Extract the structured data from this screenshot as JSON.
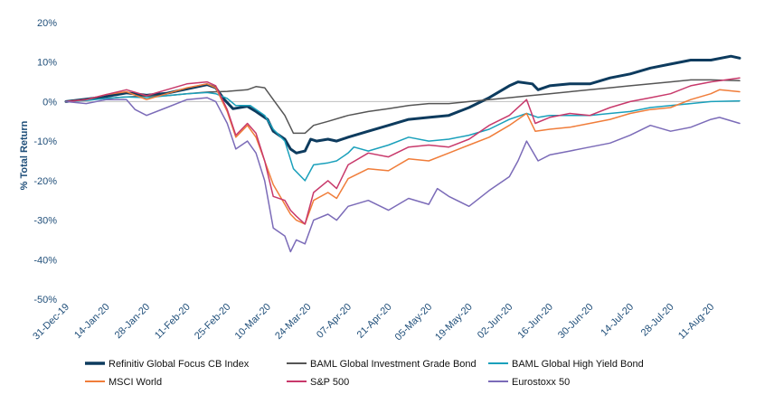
{
  "chart_data": {
    "type": "line",
    "ylabel": "% Total Return",
    "ylim": [
      -50,
      20
    ],
    "y_ticks": [
      20,
      10,
      0,
      -10,
      -20,
      -30,
      -40,
      -50
    ],
    "y_tick_labels": [
      "20%",
      "10%",
      "0%",
      "-10%",
      "-20%",
      "-30%",
      "-40%",
      "-50%"
    ],
    "x_ticks": [
      "2019-12-31",
      "2020-01-14",
      "2020-01-28",
      "2020-02-11",
      "2020-02-25",
      "2020-03-10",
      "2020-03-24",
      "2020-04-07",
      "2020-04-21",
      "2020-05-05",
      "2020-05-19",
      "2020-06-02",
      "2020-06-16",
      "2020-06-30",
      "2020-07-14",
      "2020-07-28",
      "2020-08-11"
    ],
    "x_tick_labels": [
      "31-Dec-19",
      "14-Jan-20",
      "28-Jan-20",
      "11-Feb-20",
      "25-Feb-20",
      "10-Mar-20",
      "24-Mar-20",
      "07-Apr-20",
      "21-Apr-20",
      "05-May-20",
      "19-May-20",
      "02-Jun-20",
      "16-Jun-20",
      "30-Jun-20",
      "14-Jul-20",
      "28-Jul-20",
      "11-Aug-20"
    ],
    "xlim": [
      "2019-12-31",
      "2020-08-21"
    ],
    "grid": false,
    "legend_position": "bottom",
    "series": [
      {
        "name": "Refinitiv Global Focus CB Index",
        "color": "#0d3b5e",
        "width": 3,
        "points": [
          [
            "2019-12-31",
            0
          ],
          [
            "2020-01-07",
            0.6
          ],
          [
            "2020-01-14",
            1.3
          ],
          [
            "2020-01-21",
            2.2
          ],
          [
            "2020-01-28",
            1.6
          ],
          [
            "2020-02-04",
            2.1
          ],
          [
            "2020-02-11",
            3.2
          ],
          [
            "2020-02-18",
            4.3
          ],
          [
            "2020-02-21",
            3.5
          ],
          [
            "2020-02-24",
            0.5
          ],
          [
            "2020-02-27",
            -1.8
          ],
          [
            "2020-03-03",
            -1.2
          ],
          [
            "2020-03-06",
            -2.5
          ],
          [
            "2020-03-10",
            -4.5
          ],
          [
            "2020-03-12",
            -7.5
          ],
          [
            "2020-03-16",
            -9.5
          ],
          [
            "2020-03-18",
            -12.0
          ],
          [
            "2020-03-20",
            -13.0
          ],
          [
            "2020-03-23",
            -12.5
          ],
          [
            "2020-03-25",
            -9.5
          ],
          [
            "2020-03-27",
            -10.0
          ],
          [
            "2020-03-31",
            -9.5
          ],
          [
            "2020-04-03",
            -10.0
          ],
          [
            "2020-04-07",
            -9.0
          ],
          [
            "2020-04-14",
            -7.5
          ],
          [
            "2020-04-21",
            -6.0
          ],
          [
            "2020-04-28",
            -4.5
          ],
          [
            "2020-05-05",
            -4.0
          ],
          [
            "2020-05-12",
            -3.5
          ],
          [
            "2020-05-19",
            -1.5
          ],
          [
            "2020-05-26",
            1.0
          ],
          [
            "2020-06-02",
            4.0
          ],
          [
            "2020-06-05",
            5.0
          ],
          [
            "2020-06-10",
            4.5
          ],
          [
            "2020-06-12",
            3.0
          ],
          [
            "2020-06-16",
            4.0
          ],
          [
            "2020-06-23",
            4.5
          ],
          [
            "2020-06-30",
            4.5
          ],
          [
            "2020-07-07",
            6.0
          ],
          [
            "2020-07-14",
            7.0
          ],
          [
            "2020-07-21",
            8.5
          ],
          [
            "2020-07-28",
            9.5
          ],
          [
            "2020-08-04",
            10.5
          ],
          [
            "2020-08-11",
            10.5
          ],
          [
            "2020-08-18",
            11.5
          ],
          [
            "2020-08-21",
            11.0
          ]
        ]
      },
      {
        "name": "BAML Global Investment Grade Bond",
        "color": "#555555",
        "width": 1.5,
        "points": [
          [
            "2019-12-31",
            0
          ],
          [
            "2020-01-07",
            0.4
          ],
          [
            "2020-01-14",
            0.8
          ],
          [
            "2020-01-21",
            1.2
          ],
          [
            "2020-01-28",
            1.4
          ],
          [
            "2020-02-04",
            1.5
          ],
          [
            "2020-02-11",
            2.0
          ],
          [
            "2020-02-18",
            2.4
          ],
          [
            "2020-02-25",
            2.6
          ],
          [
            "2020-03-03",
            3.0
          ],
          [
            "2020-03-06",
            3.8
          ],
          [
            "2020-03-09",
            3.5
          ],
          [
            "2020-03-12",
            0.5
          ],
          [
            "2020-03-16",
            -3.5
          ],
          [
            "2020-03-19",
            -8.0
          ],
          [
            "2020-03-23",
            -8.0
          ],
          [
            "2020-03-26",
            -6.0
          ],
          [
            "2020-03-31",
            -5.0
          ],
          [
            "2020-04-07",
            -3.5
          ],
          [
            "2020-04-14",
            -2.5
          ],
          [
            "2020-04-21",
            -1.8
          ],
          [
            "2020-04-28",
            -1.0
          ],
          [
            "2020-05-05",
            -0.5
          ],
          [
            "2020-05-12",
            -0.5
          ],
          [
            "2020-05-19",
            0
          ],
          [
            "2020-05-26",
            0.5
          ],
          [
            "2020-06-02",
            1.0
          ],
          [
            "2020-06-09",
            1.5
          ],
          [
            "2020-06-16",
            2.0
          ],
          [
            "2020-06-23",
            2.5
          ],
          [
            "2020-06-30",
            3.0
          ],
          [
            "2020-07-07",
            3.5
          ],
          [
            "2020-07-14",
            4.0
          ],
          [
            "2020-07-21",
            4.5
          ],
          [
            "2020-07-28",
            5.0
          ],
          [
            "2020-08-04",
            5.5
          ],
          [
            "2020-08-11",
            5.5
          ],
          [
            "2020-08-21",
            5.3
          ]
        ]
      },
      {
        "name": "BAML Global High Yield Bond",
        "color": "#1aa0bb",
        "width": 1.5,
        "points": [
          [
            "2019-12-31",
            0
          ],
          [
            "2020-01-07",
            0.3
          ],
          [
            "2020-01-14",
            0.8
          ],
          [
            "2020-01-21",
            1.2
          ],
          [
            "2020-01-28",
            1.0
          ],
          [
            "2020-02-04",
            1.5
          ],
          [
            "2020-02-11",
            2.0
          ],
          [
            "2020-02-18",
            2.3
          ],
          [
            "2020-02-21",
            2.0
          ],
          [
            "2020-02-25",
            0.8
          ],
          [
            "2020-02-28",
            -1.0
          ],
          [
            "2020-03-04",
            -1.0
          ],
          [
            "2020-03-09",
            -3.5
          ],
          [
            "2020-03-12",
            -7.0
          ],
          [
            "2020-03-16",
            -10.0
          ],
          [
            "2020-03-19",
            -17.0
          ],
          [
            "2020-03-23",
            -20.0
          ],
          [
            "2020-03-26",
            -16.0
          ],
          [
            "2020-03-31",
            -15.5
          ],
          [
            "2020-04-03",
            -15.0
          ],
          [
            "2020-04-07",
            -13.0
          ],
          [
            "2020-04-09",
            -11.5
          ],
          [
            "2020-04-14",
            -12.5
          ],
          [
            "2020-04-21",
            -11.0
          ],
          [
            "2020-04-28",
            -9.0
          ],
          [
            "2020-05-05",
            -10.0
          ],
          [
            "2020-05-12",
            -9.5
          ],
          [
            "2020-05-19",
            -8.5
          ],
          [
            "2020-05-26",
            -7.0
          ],
          [
            "2020-06-02",
            -4.5
          ],
          [
            "2020-06-08",
            -3.0
          ],
          [
            "2020-06-12",
            -4.0
          ],
          [
            "2020-06-16",
            -3.5
          ],
          [
            "2020-06-23",
            -3.5
          ],
          [
            "2020-06-30",
            -3.5
          ],
          [
            "2020-07-07",
            -3.0
          ],
          [
            "2020-07-14",
            -2.5
          ],
          [
            "2020-07-21",
            -1.5
          ],
          [
            "2020-07-28",
            -1.0
          ],
          [
            "2020-08-04",
            -0.5
          ],
          [
            "2020-08-11",
            0
          ],
          [
            "2020-08-21",
            0.2
          ]
        ]
      },
      {
        "name": "MSCI World",
        "color": "#f07d3a",
        "width": 1.5,
        "points": [
          [
            "2019-12-31",
            0
          ],
          [
            "2020-01-07",
            0.5
          ],
          [
            "2020-01-14",
            1.8
          ],
          [
            "2020-01-21",
            2.5
          ],
          [
            "2020-01-28",
            0.5
          ],
          [
            "2020-02-04",
            2.0
          ],
          [
            "2020-02-11",
            3.5
          ],
          [
            "2020-02-18",
            4.5
          ],
          [
            "2020-02-21",
            3.5
          ],
          [
            "2020-02-25",
            -2.5
          ],
          [
            "2020-02-28",
            -9.0
          ],
          [
            "2020-03-03",
            -6.0
          ],
          [
            "2020-03-06",
            -9.0
          ],
          [
            "2020-03-09",
            -15.0
          ],
          [
            "2020-03-12",
            -21.0
          ],
          [
            "2020-03-16",
            -26.0
          ],
          [
            "2020-03-18",
            -28.5
          ],
          [
            "2020-03-20",
            -30.0
          ],
          [
            "2020-03-23",
            -31.0
          ],
          [
            "2020-03-26",
            -25.0
          ],
          [
            "2020-03-31",
            -23.0
          ],
          [
            "2020-04-03",
            -24.5
          ],
          [
            "2020-04-07",
            -19.5
          ],
          [
            "2020-04-14",
            -17.0
          ],
          [
            "2020-04-21",
            -17.5
          ],
          [
            "2020-04-28",
            -14.5
          ],
          [
            "2020-05-05",
            -15.0
          ],
          [
            "2020-05-12",
            -13.0
          ],
          [
            "2020-05-19",
            -11.0
          ],
          [
            "2020-05-26",
            -9.0
          ],
          [
            "2020-06-02",
            -6.0
          ],
          [
            "2020-06-08",
            -3.0
          ],
          [
            "2020-06-11",
            -7.5
          ],
          [
            "2020-06-16",
            -7.0
          ],
          [
            "2020-06-23",
            -6.5
          ],
          [
            "2020-06-30",
            -5.5
          ],
          [
            "2020-07-07",
            -4.5
          ],
          [
            "2020-07-14",
            -3.0
          ],
          [
            "2020-07-21",
            -2.0
          ],
          [
            "2020-07-28",
            -1.5
          ],
          [
            "2020-08-04",
            0.5
          ],
          [
            "2020-08-11",
            2.0
          ],
          [
            "2020-08-14",
            3.0
          ],
          [
            "2020-08-21",
            2.5
          ]
        ]
      },
      {
        "name": "S&P 500",
        "color": "#c8396b",
        "width": 1.5,
        "points": [
          [
            "2019-12-31",
            0
          ],
          [
            "2020-01-07",
            0.5
          ],
          [
            "2020-01-14",
            1.8
          ],
          [
            "2020-01-21",
            3.0
          ],
          [
            "2020-01-28",
            1.5
          ],
          [
            "2020-02-04",
            3.0
          ],
          [
            "2020-02-11",
            4.5
          ],
          [
            "2020-02-18",
            5.0
          ],
          [
            "2020-02-21",
            4.0
          ],
          [
            "2020-02-25",
            -2.0
          ],
          [
            "2020-02-28",
            -8.5
          ],
          [
            "2020-03-03",
            -5.5
          ],
          [
            "2020-03-06",
            -8.0
          ],
          [
            "2020-03-09",
            -15.0
          ],
          [
            "2020-03-12",
            -24.0
          ],
          [
            "2020-03-16",
            -25.0
          ],
          [
            "2020-03-18",
            -27.5
          ],
          [
            "2020-03-20",
            -29.0
          ],
          [
            "2020-03-23",
            -31.0
          ],
          [
            "2020-03-26",
            -23.0
          ],
          [
            "2020-03-31",
            -20.0
          ],
          [
            "2020-04-03",
            -22.0
          ],
          [
            "2020-04-07",
            -16.0
          ],
          [
            "2020-04-14",
            -13.0
          ],
          [
            "2020-04-21",
            -14.0
          ],
          [
            "2020-04-28",
            -11.5
          ],
          [
            "2020-05-05",
            -11.0
          ],
          [
            "2020-05-12",
            -11.5
          ],
          [
            "2020-05-19",
            -9.5
          ],
          [
            "2020-05-26",
            -6.0
          ],
          [
            "2020-06-02",
            -3.5
          ],
          [
            "2020-06-08",
            0.5
          ],
          [
            "2020-06-11",
            -5.5
          ],
          [
            "2020-06-16",
            -4.0
          ],
          [
            "2020-06-23",
            -3.0
          ],
          [
            "2020-06-30",
            -3.5
          ],
          [
            "2020-07-07",
            -1.5
          ],
          [
            "2020-07-14",
            0
          ],
          [
            "2020-07-21",
            1.0
          ],
          [
            "2020-07-28",
            2.0
          ],
          [
            "2020-08-04",
            4.0
          ],
          [
            "2020-08-11",
            5.0
          ],
          [
            "2020-08-21",
            6.0
          ]
        ]
      },
      {
        "name": "Eurostoxx 50",
        "color": "#7b6bb8",
        "width": 1.5,
        "points": [
          [
            "2019-12-31",
            0
          ],
          [
            "2020-01-07",
            -0.5
          ],
          [
            "2020-01-14",
            0.5
          ],
          [
            "2020-01-21",
            0.5
          ],
          [
            "2020-01-24",
            -2.0
          ],
          [
            "2020-01-28",
            -3.5
          ],
          [
            "2020-02-04",
            -1.5
          ],
          [
            "2020-02-11",
            0.5
          ],
          [
            "2020-02-18",
            1.0
          ],
          [
            "2020-02-21",
            0
          ],
          [
            "2020-02-25",
            -5.5
          ],
          [
            "2020-02-28",
            -12.0
          ],
          [
            "2020-03-03",
            -10.0
          ],
          [
            "2020-03-06",
            -13.0
          ],
          [
            "2020-03-09",
            -20.0
          ],
          [
            "2020-03-12",
            -32.0
          ],
          [
            "2020-03-16",
            -34.0
          ],
          [
            "2020-03-18",
            -38.0
          ],
          [
            "2020-03-20",
            -35.0
          ],
          [
            "2020-03-23",
            -36.0
          ],
          [
            "2020-03-26",
            -30.0
          ],
          [
            "2020-03-31",
            -28.5
          ],
          [
            "2020-04-03",
            -30.0
          ],
          [
            "2020-04-07",
            -26.5
          ],
          [
            "2020-04-14",
            -25.0
          ],
          [
            "2020-04-21",
            -27.5
          ],
          [
            "2020-04-28",
            -24.5
          ],
          [
            "2020-05-05",
            -26.0
          ],
          [
            "2020-05-08",
            -22.0
          ],
          [
            "2020-05-12",
            -24.0
          ],
          [
            "2020-05-19",
            -26.5
          ],
          [
            "2020-05-26",
            -22.5
          ],
          [
            "2020-06-02",
            -19.0
          ],
          [
            "2020-06-05",
            -15.0
          ],
          [
            "2020-06-08",
            -10.0
          ],
          [
            "2020-06-12",
            -15.0
          ],
          [
            "2020-06-16",
            -13.5
          ],
          [
            "2020-06-23",
            -12.5
          ],
          [
            "2020-06-30",
            -11.5
          ],
          [
            "2020-07-07",
            -10.5
          ],
          [
            "2020-07-14",
            -8.5
          ],
          [
            "2020-07-21",
            -6.0
          ],
          [
            "2020-07-28",
            -7.5
          ],
          [
            "2020-08-04",
            -6.5
          ],
          [
            "2020-08-11",
            -4.5
          ],
          [
            "2020-08-14",
            -4.0
          ],
          [
            "2020-08-21",
            -5.5
          ]
        ]
      }
    ]
  }
}
